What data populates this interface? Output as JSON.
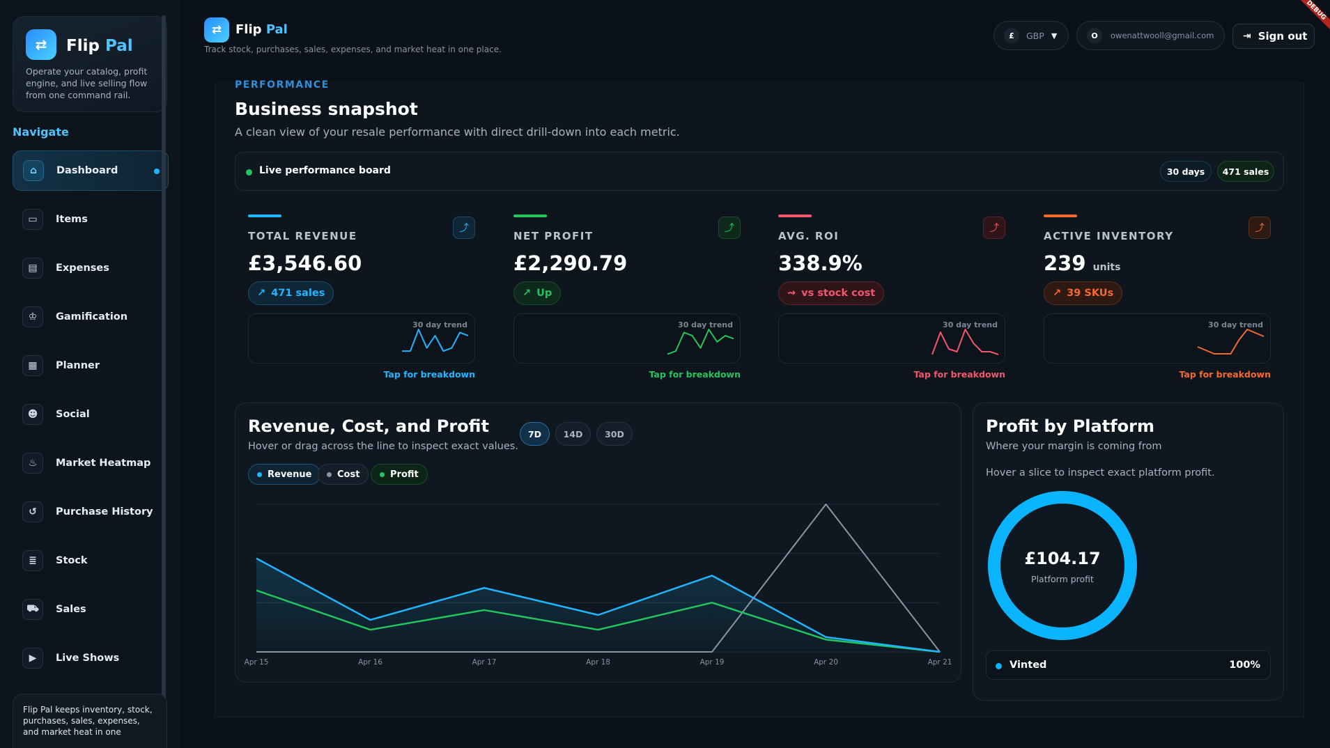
{
  "app": {
    "name_part1": "Flip",
    "name_part2": "Pal",
    "sidebar_desc": "Operate your catalog, profit engine, and live selling flow from one command rail.",
    "header_sub": "Track stock, purchases, sales, expenses, and market heat in one place.",
    "debug_label": "DEBUG"
  },
  "sidebar": {
    "nav_title": "Navigate",
    "items": [
      {
        "label": "Dashboard",
        "icon": "home-icon",
        "active": true
      },
      {
        "label": "Items",
        "icon": "box-icon"
      },
      {
        "label": "Expenses",
        "icon": "receipt-icon"
      },
      {
        "label": "Gamification",
        "icon": "trophy-icon"
      },
      {
        "label": "Planner",
        "icon": "calendar-icon"
      },
      {
        "label": "Social",
        "icon": "people-icon"
      },
      {
        "label": "Market Heatmap",
        "icon": "flame-icon"
      },
      {
        "label": "Purchase History",
        "icon": "history-icon"
      },
      {
        "label": "Stock",
        "icon": "stack-icon"
      },
      {
        "label": "Sales",
        "icon": "cart-icon"
      },
      {
        "label": "Live Shows",
        "icon": "live-icon"
      }
    ],
    "footer_text": "Flip Pal keeps inventory, stock, purchases, sales, expenses, and market heat in one"
  },
  "header": {
    "currency_symbol": "£",
    "currency": "GBP",
    "user_initial": "O",
    "user_email": "owenattwooll@gmail.com",
    "signout": "Sign out"
  },
  "section": {
    "label": "PERFORMANCE",
    "title": "Business snapshot",
    "desc": "A clean view of your resale performance with direct drill-down into each metric.",
    "live_label": "Live performance board",
    "chip_days": "30 days",
    "chip_sales": "471 sales"
  },
  "cards": [
    {
      "label": "TOTAL REVENUE",
      "value": "£3,546.60",
      "unit": "",
      "badge": "471 sales",
      "badge_icon": "↗",
      "color": "#1fb6ff",
      "trend_label": "30 day trend",
      "tap": "Tap for breakdown",
      "trend": [
        2,
        2,
        9,
        3,
        7,
        2,
        3,
        8,
        7
      ]
    },
    {
      "label": "NET PROFIT",
      "value": "£2,290.79",
      "unit": "",
      "badge": "Up",
      "badge_icon": "↗",
      "color": "#22c55e",
      "trend_label": "30 day trend",
      "tap": "Tap for breakdown",
      "trend": [
        1,
        2,
        8,
        7,
        3,
        9,
        5,
        7,
        6
      ]
    },
    {
      "label": "AVG. ROI",
      "value": "338.9%",
      "unit": "",
      "badge": "vs stock cost",
      "badge_icon": "⇝",
      "color": "#f4566b",
      "trend_label": "30 day trend",
      "tap": "Tap for breakdown",
      "trend": [
        1,
        9,
        3,
        2,
        10,
        5,
        2,
        2,
        1
      ]
    },
    {
      "label": "ACTIVE INVENTORY",
      "value": "239",
      "unit": "units",
      "badge": "39 SKUs",
      "badge_icon": "↗",
      "color": "#f46a2c",
      "trend_label": "30 day trend",
      "tap": "Tap for breakdown",
      "trend": [
        3,
        2,
        1,
        1,
        1,
        5,
        8,
        7,
        6
      ]
    }
  ],
  "revenue_panel": {
    "title": "Revenue, Cost, and Profit",
    "sub": "Hover or drag across the line to inspect exact values.",
    "ranges": [
      "7D",
      "14D",
      "30D"
    ],
    "selected_range": "7D",
    "legend": [
      {
        "label": "Revenue",
        "color": "#1fb6ff"
      },
      {
        "label": "Cost",
        "color": "#8a96a3"
      },
      {
        "label": "Profit",
        "color": "#22c55e"
      }
    ]
  },
  "chart_data": {
    "type": "line",
    "categories": [
      "Apr 15",
      "Apr 16",
      "Apr 17",
      "Apr 18",
      "Apr 19",
      "Apr 20",
      "Apr 21"
    ],
    "series": [
      {
        "name": "Revenue",
        "values": [
          19,
          6.5,
          13,
          7.5,
          15.5,
          3,
          0
        ]
      },
      {
        "name": "Cost",
        "values": [
          0,
          0,
          0,
          0,
          0,
          30,
          0
        ]
      },
      {
        "name": "Profit",
        "values": [
          12.5,
          4.5,
          8.5,
          4.5,
          10,
          2.5,
          0
        ]
      }
    ],
    "ylim": [
      0,
      30
    ],
    "grid": true
  },
  "platform_panel": {
    "title": "Profit by Platform",
    "sub": "Where your margin is coming from",
    "hint": "Hover a slice to inspect exact platform profit.",
    "center_value": "£104.17",
    "center_label": "Platform profit",
    "slices": [
      {
        "label": "Vinted",
        "value": 100,
        "pct": "100%",
        "color": "#0ab4ff"
      }
    ]
  }
}
